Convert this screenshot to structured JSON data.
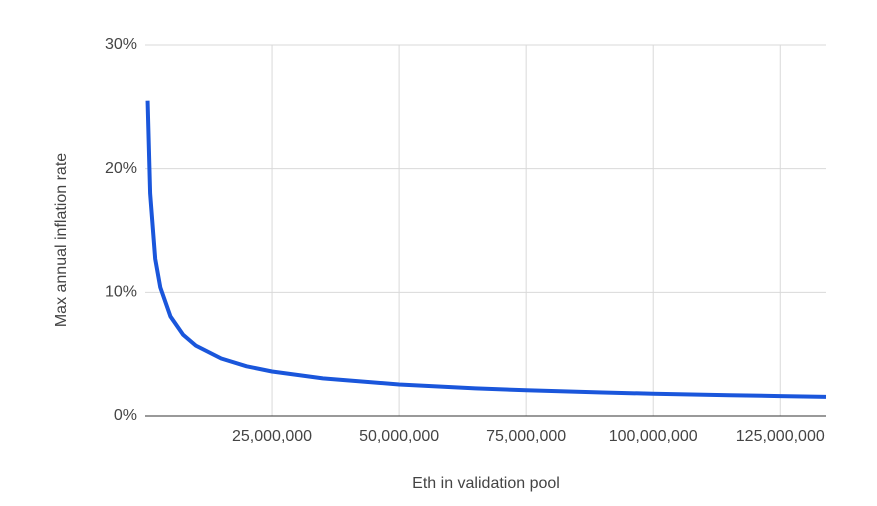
{
  "chart_data": {
    "type": "line",
    "x_label": "Eth in validation pool",
    "y_label": "Max annual inflation rate",
    "x": [
      500000,
      1000000,
      2000000,
      3000000,
      5000000,
      7500000,
      10000000,
      15000000,
      20000000,
      25000000,
      35000000,
      50000000,
      65000000,
      75000000,
      90000000,
      100000000,
      115000000,
      125000000,
      134000000
    ],
    "series": [
      {
        "name": "Max annual inflation rate",
        "color": "#1a56db",
        "values": [
          25.5,
          18.0,
          12.7,
          10.4,
          8.05,
          6.57,
          5.69,
          4.65,
          4.02,
          3.6,
          3.04,
          2.55,
          2.23,
          2.08,
          1.9,
          1.8,
          1.68,
          1.61,
          1.55
        ]
      }
    ],
    "xlim": [
      0,
      134000000
    ],
    "xticks": [
      {
        "value": 25000000,
        "label": "25,000,000"
      },
      {
        "value": 50000000,
        "label": "50,000,000"
      },
      {
        "value": 75000000,
        "label": "75,000,000"
      },
      {
        "value": 100000000,
        "label": "100,000,000"
      },
      {
        "value": 125000000,
        "label": "125,000,000"
      }
    ],
    "ylim": [
      0,
      30
    ],
    "yticks": [
      {
        "value": 0,
        "label": "0%"
      },
      {
        "value": 10,
        "label": "10%"
      },
      {
        "value": 20,
        "label": "20%"
      },
      {
        "value": 30,
        "label": "30%"
      }
    ],
    "grid": true
  }
}
